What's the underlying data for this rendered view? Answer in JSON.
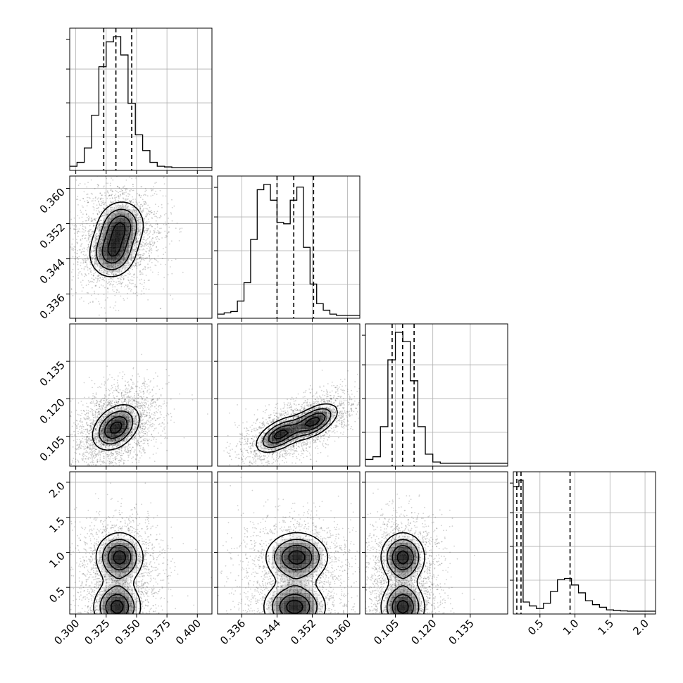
{
  "chart_data": {
    "type": "corner",
    "parameters": [
      {
        "ticks": [
          "0.300",
          "0.325",
          "0.350",
          "0.375",
          "0.400"
        ]
      },
      {
        "ticks": [
          "0.336",
          "0.344",
          "0.352",
          "0.360"
        ]
      },
      {
        "ticks": [
          "0.105",
          "0.120",
          "0.135"
        ]
      },
      {
        "ticks": [
          "0.5",
          "1.0",
          "1.5",
          "2.0"
        ]
      }
    ],
    "ranges": [
      [
        0.295,
        0.412
      ],
      [
        0.3305,
        0.3628
      ],
      [
        0.093,
        0.15
      ],
      [
        0.12,
        2.15
      ]
    ],
    "tick_values": [
      [
        0.3,
        0.325,
        0.35,
        0.375,
        0.4
      ],
      [
        0.336,
        0.344,
        0.352,
        0.36
      ],
      [
        0.105,
        0.12,
        0.135
      ],
      [
        0.5,
        1.0,
        1.5,
        2.0
      ]
    ],
    "histograms": [
      {
        "bin_edges": [
          0.295,
          0.301,
          0.307,
          0.313,
          0.319,
          0.325,
          0.331,
          0.337,
          0.343,
          0.349,
          0.355,
          0.361,
          0.367,
          0.373,
          0.379,
          0.385,
          0.391,
          0.397,
          0.403,
          0.409,
          0.412
        ],
        "counts": [
          0.01,
          0.04,
          0.15,
          0.4,
          0.77,
          0.96,
          1.0,
          0.86,
          0.49,
          0.25,
          0.13,
          0.04,
          0.01,
          0.005,
          0,
          0,
          0,
          0,
          0,
          0
        ],
        "quantiles": [
          0.323,
          0.333,
          0.346
        ]
      },
      {
        "bin_edges": [
          0.3305,
          0.332,
          0.3335,
          0.335,
          0.3365,
          0.338,
          0.3395,
          0.341,
          0.3425,
          0.344,
          0.3455,
          0.347,
          0.3485,
          0.35,
          0.3515,
          0.353,
          0.3545,
          0.356,
          0.3575,
          0.359,
          0.3605,
          0.3628
        ],
        "counts": [
          0.01,
          0.02,
          0.03,
          0.11,
          0.25,
          0.58,
          0.96,
          1.0,
          0.88,
          0.71,
          0.7,
          0.88,
          0.98,
          0.52,
          0.24,
          0.09,
          0.04,
          0.01,
          0,
          0,
          0
        ],
        "quantiles": [
          0.344,
          0.3478,
          0.3523
        ]
      },
      {
        "bin_edges": [
          0.093,
          0.096,
          0.099,
          0.102,
          0.105,
          0.108,
          0.111,
          0.114,
          0.117,
          0.12,
          0.123,
          0.126,
          0.129,
          0.132,
          0.135,
          0.138,
          0.141,
          0.144,
          0.147,
          0.15
        ],
        "counts": [
          0.03,
          0.05,
          0.28,
          0.79,
          1.0,
          0.93,
          0.63,
          0.28,
          0.07,
          0.01,
          0,
          0,
          0,
          0,
          0,
          0,
          0,
          0,
          0
        ],
        "quantiles": [
          0.1037,
          0.1079,
          0.1125
        ]
      },
      {
        "bin_edges": [
          0.12,
          0.2,
          0.26,
          0.35,
          0.45,
          0.55,
          0.65,
          0.75,
          0.85,
          0.95,
          1.05,
          1.15,
          1.25,
          1.35,
          1.45,
          1.55,
          1.65,
          1.75,
          2.15
        ],
        "counts": [
          0.95,
          1.0,
          0.07,
          0.04,
          0.02,
          0.06,
          0.15,
          0.24,
          0.25,
          0.2,
          0.14,
          0.08,
          0.05,
          0.03,
          0.01,
          0.005,
          0.002,
          0
        ],
        "quantiles": [
          0.17,
          0.23,
          0.93
        ]
      }
    ],
    "scatter_2d": [
      {
        "x": 0,
        "y": 1,
        "modes": [
          {
            "cx": 0.33,
            "cy": 0.3452
          },
          {
            "cx": 0.337,
            "cy": 0.3516
          }
        ],
        "sx": 0.011,
        "sy": 0.0032,
        "rho": 0.05
      },
      {
        "x": 0,
        "y": 2,
        "modes": [
          {
            "cx": 0.333,
            "cy": 0.1085
          }
        ],
        "sx": 0.011,
        "sy": 0.0052,
        "rho": 0.35
      },
      {
        "x": 1,
        "y": 2,
        "modes": [
          {
            "cx": 0.3445,
            "cy": 0.1055
          },
          {
            "cx": 0.3525,
            "cy": 0.111
          }
        ],
        "sx": 0.003,
        "sy": 0.004,
        "rho": 0.55
      },
      {
        "x": 0,
        "y": 3,
        "modes": [
          {
            "cx": 0.334,
            "cy": 0.22
          },
          {
            "cx": 0.336,
            "cy": 0.93
          }
        ],
        "sx": 0.011,
        "sy": 0.2,
        "rho": 0.0
      },
      {
        "x": 1,
        "y": 3,
        "modes": [
          {
            "cx": 0.348,
            "cy": 0.22
          },
          {
            "cx": 0.3485,
            "cy": 0.93
          }
        ],
        "sx": 0.004,
        "sy": 0.2,
        "rho": 0.0
      },
      {
        "x": 2,
        "y": 3,
        "modes": [
          {
            "cx": 0.108,
            "cy": 0.22
          },
          {
            "cx": 0.108,
            "cy": 0.93
          }
        ],
        "sx": 0.005,
        "sy": 0.2,
        "rho": 0.0
      }
    ],
    "grid": true,
    "colors": {
      "ink": "#000000",
      "grid": "#b0b0b0",
      "background": "#ffffff"
    }
  }
}
